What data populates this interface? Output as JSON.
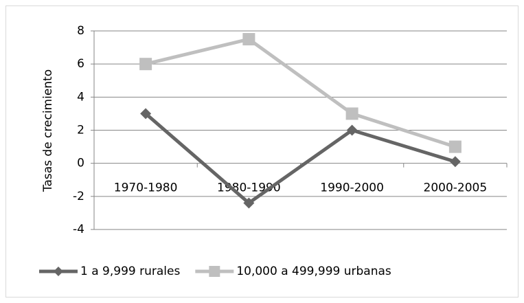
{
  "chart_data": {
    "type": "line",
    "y_label": "Tasas de crecimiento",
    "categories": [
      "1970-1980",
      "1980-1990",
      "1990-2000",
      "2000-2005"
    ],
    "series": [
      {
        "name": "1 a 9,999 rurales",
        "color": "#656565",
        "marker": "diamond",
        "values": [
          3,
          -2.4,
          2,
          0.1
        ]
      },
      {
        "name": "10,000 a 499,999 urbanas",
        "color": "#bfbfbf",
        "marker": "square",
        "values": [
          6,
          7.5,
          3,
          1
        ]
      }
    ],
    "ylim": [
      -4,
      8
    ],
    "yticks": [
      -4,
      -2,
      0,
      2,
      4,
      6,
      8
    ],
    "grid": true,
    "legend": "bottom"
  }
}
